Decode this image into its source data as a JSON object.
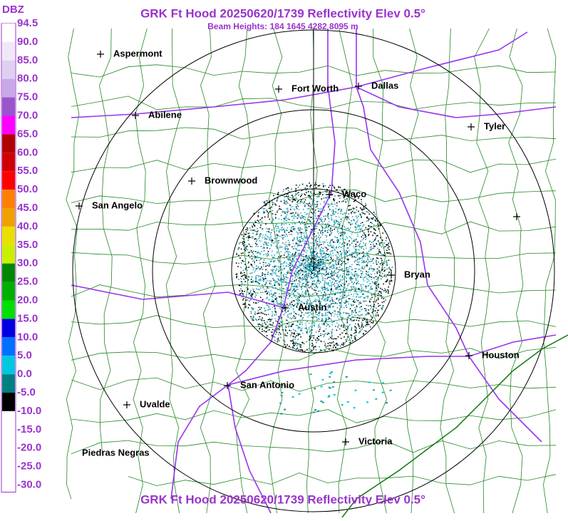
{
  "header": {
    "title": "GRK Ft Hood 20250620/1739 Reflectivity Elev 0.5°",
    "subtitle": "Beam Heights: 184 1645 4282 8095 m"
  },
  "footer": {
    "title": "GRK Ft Hood 20250620/1739 Reflectivity Elev 0.5°"
  },
  "legend": {
    "unit": "DBZ",
    "labels": [
      "94.5",
      "90.0",
      "85.0",
      "80.0",
      "75.0",
      "70.0",
      "65.0",
      "60.0",
      "55.0",
      "50.0",
      "45.0",
      "40.0",
      "35.0",
      "30.0",
      "25.0",
      "20.0",
      "15.0",
      "10.0",
      "5.0",
      "0.0",
      "-5.0",
      "-10.0",
      "-15.0",
      "-20.0",
      "-25.0",
      "-30.0"
    ]
  },
  "map": {
    "cities": [
      "Aspermont",
      "Fort Worth",
      "Dallas",
      "Abilene",
      "Tyler",
      "Brownwood",
      "Waco",
      "San Angelo",
      "Bryan",
      "Austin",
      "Houston",
      "San Antonio",
      "Uvalde",
      "Victoria",
      "Piedras Negras"
    ]
  }
}
